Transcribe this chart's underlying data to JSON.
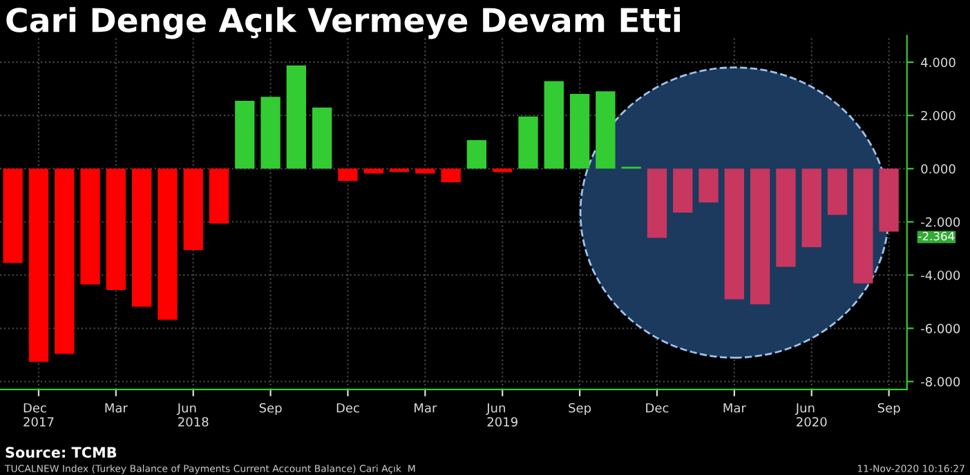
{
  "chart_data": {
    "type": "bar",
    "title": "Cari Denge Açık Vermeye Devam Etti",
    "categories": [
      null,
      "Dec\n2017",
      null,
      null,
      "Mar",
      null,
      null,
      "Jun\n2018",
      null,
      null,
      "Sep",
      null,
      null,
      "Dec",
      null,
      null,
      "Mar",
      null,
      null,
      "Jun\n2019",
      null,
      null,
      "Sep",
      null,
      null,
      "Dec",
      null,
      null,
      "Mar",
      null,
      null,
      "Jun\n2020",
      null,
      null,
      "Sep"
    ],
    "values": [
      -3.54,
      -7.26,
      -6.96,
      -4.35,
      -4.56,
      -5.19,
      -5.68,
      -3.06,
      -2.06,
      2.55,
      2.7,
      3.88,
      2.3,
      -0.46,
      -0.18,
      -0.12,
      -0.18,
      -0.51,
      1.07,
      -0.13,
      1.96,
      3.29,
      2.81,
      2.91,
      0.07,
      -2.6,
      -1.65,
      -1.27,
      -4.91,
      -5.1,
      -3.69,
      -2.95,
      -1.74,
      -4.31,
      -2.364
    ],
    "colors": [
      "#ff0000",
      "#ff0000",
      "#ff0000",
      "#ff0000",
      "#ff0000",
      "#ff0000",
      "#ff0000",
      "#ff0000",
      "#ff0000",
      "#33cc33",
      "#33cc33",
      "#33cc33",
      "#33cc33",
      "#ff0000",
      "#ff0000",
      "#ff0000",
      "#ff0000",
      "#ff0000",
      "#33cc33",
      "#ff0000",
      "#33cc33",
      "#33cc33",
      "#33cc33",
      "#33cc33",
      "#33cc33",
      "#c8375f",
      "#c8375f",
      "#c8375f",
      "#c8375f",
      "#c8375f",
      "#c8375f",
      "#c8375f",
      "#c8375f",
      "#c8375f",
      "#c8375f"
    ],
    "ylim": [
      -8.3,
      5
    ],
    "yticks": [
      {
        "value": -8,
        "label": "-8.000"
      },
      {
        "value": -6,
        "label": "-6.000"
      },
      {
        "value": -4,
        "label": "-4.000"
      },
      {
        "value": -2,
        "label": "-2.000"
      },
      {
        "value": 0,
        "label": "0.000"
      },
      {
        "value": 2,
        "label": "2.000"
      },
      {
        "value": 4,
        "label": "4.000"
      }
    ],
    "grid": true,
    "annotations": [
      "-2.364",
      "Source: TCMB",
      "TUCALNEW Index (Turkey Balance of Payments Current Account Balance) Cari Açık  M",
      "11-Nov-2020 10:16:27"
    ]
  }
}
